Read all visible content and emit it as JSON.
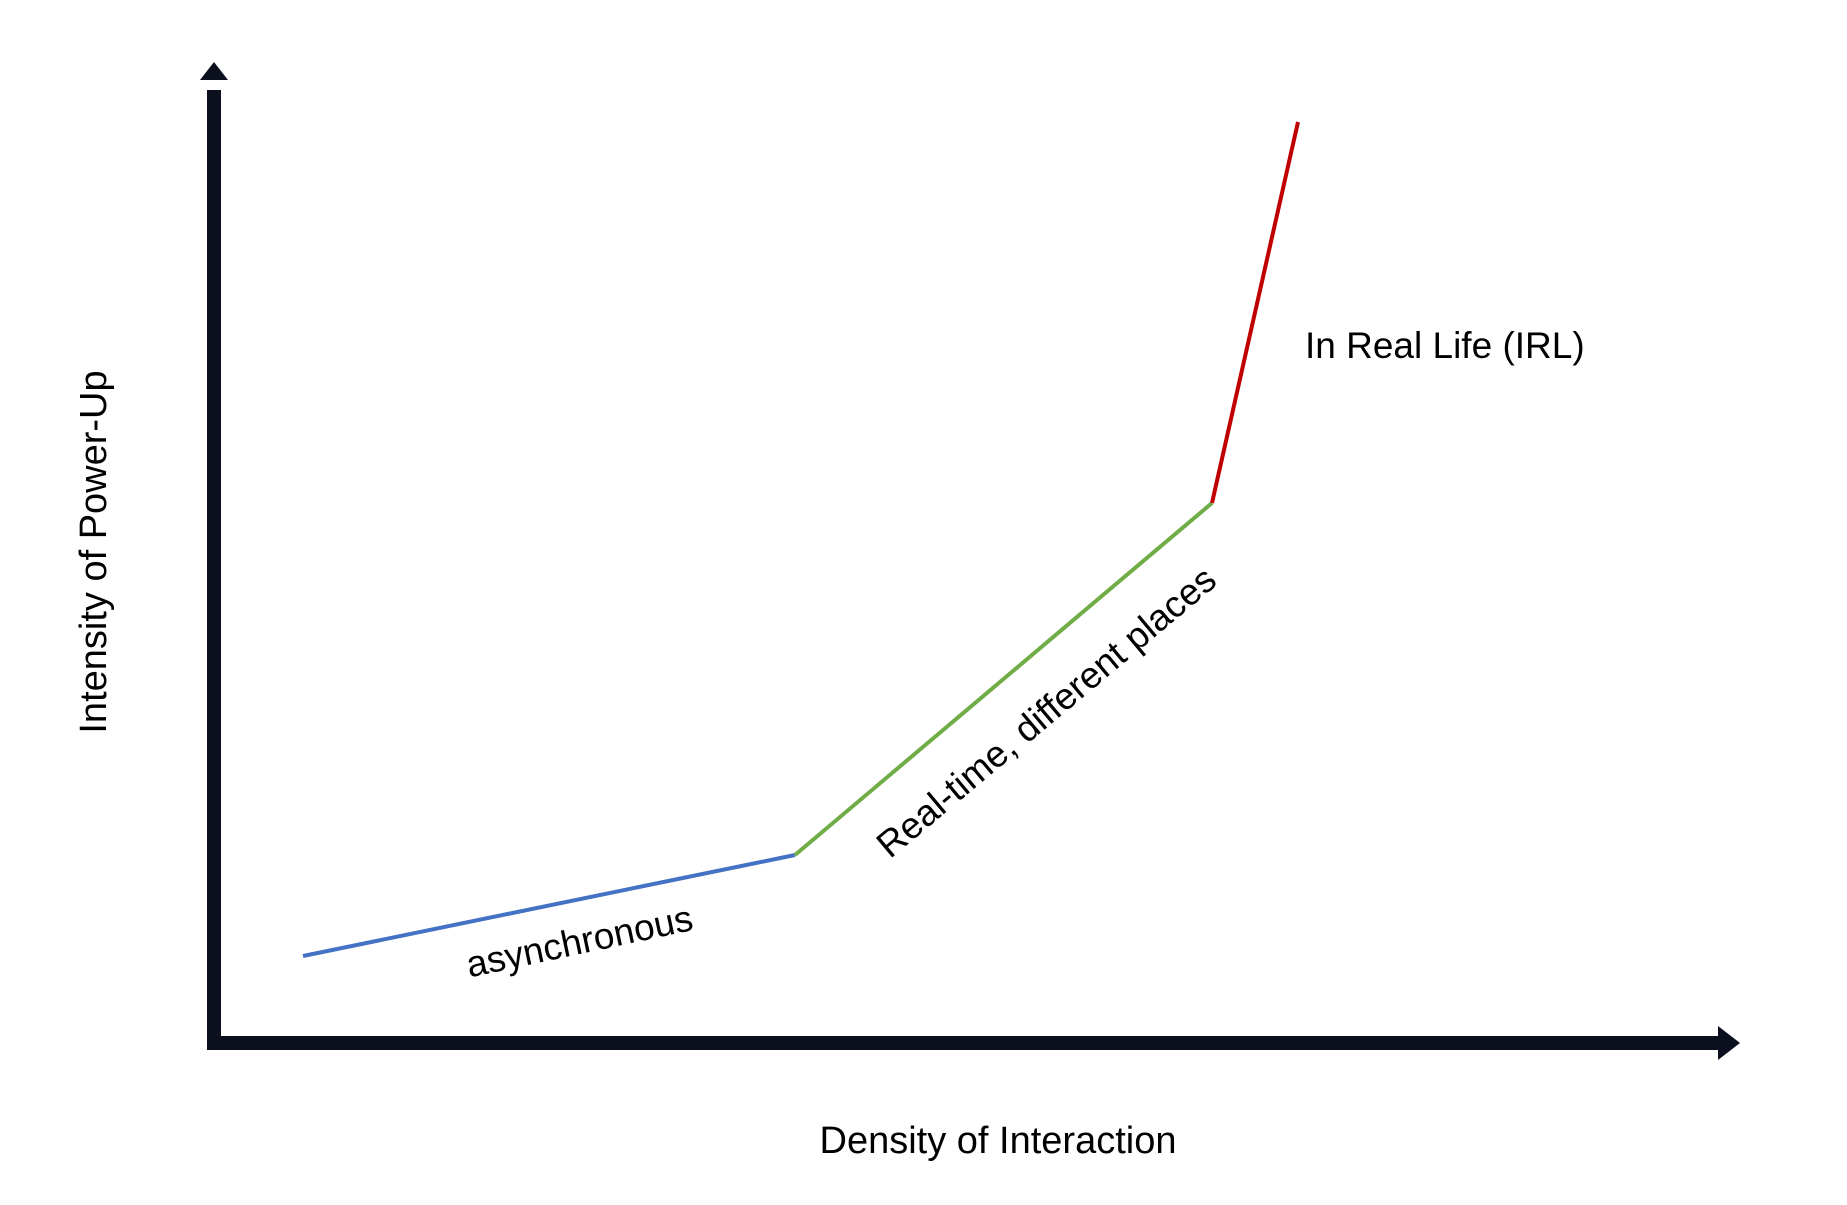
{
  "chart_data": {
    "type": "line",
    "xlabel": "Density of Interaction",
    "ylabel": "Intensity of Power-Up",
    "axis_color": "#0b0f1e",
    "segments": [
      {
        "label": "asynchronous",
        "color": "#4472c4"
      },
      {
        "label": "Real-time, different places",
        "color": "#70ad47"
      },
      {
        "label": "In Real Life (IRL)",
        "color": "#c00000"
      }
    ]
  }
}
